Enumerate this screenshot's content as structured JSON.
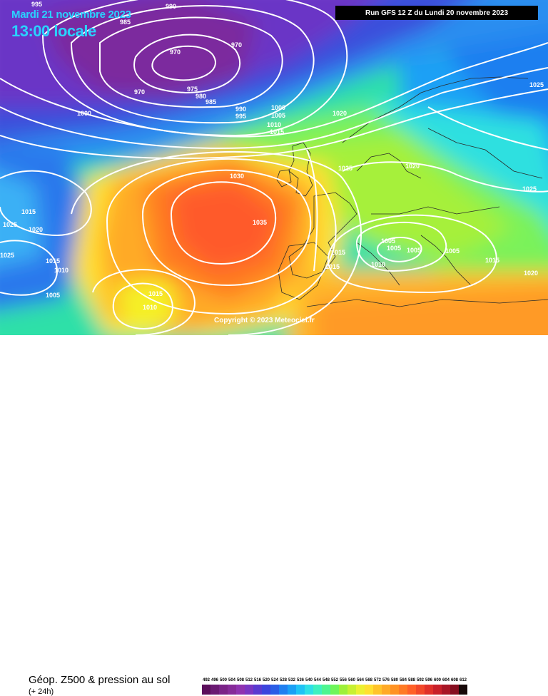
{
  "header": {
    "date": "Mardi 21 novembre 2023",
    "time": "13:00 locale",
    "run": "Run GFS 12 Z du Lundi 20 novembre 2023"
  },
  "copyright": "Copyright © 2023 Meteociel.fr",
  "legend": {
    "title": "Géop. Z500 & pression au sol",
    "subtitle": "(+ 24h)",
    "scale": [
      {
        "label": "492",
        "color": "#5c0f5c"
      },
      {
        "label": "496",
        "color": "#6b1a73"
      },
      {
        "label": "500",
        "color": "#7a2387"
      },
      {
        "label": "504",
        "color": "#862b99"
      },
      {
        "label": "508",
        "color": "#8f33b0"
      },
      {
        "label": "512",
        "color": "#7a36c2"
      },
      {
        "label": "516",
        "color": "#5a3ad0"
      },
      {
        "label": "520",
        "color": "#3c44dd"
      },
      {
        "label": "524",
        "color": "#2a5de6"
      },
      {
        "label": "528",
        "color": "#1f7ff0"
      },
      {
        "label": "532",
        "color": "#1aa0f5"
      },
      {
        "label": "536",
        "color": "#1fc3f5"
      },
      {
        "label": "540",
        "color": "#2ee0e6"
      },
      {
        "label": "544",
        "color": "#3ef0c0"
      },
      {
        "label": "548",
        "color": "#4df590"
      },
      {
        "label": "552",
        "color": "#6ef55a"
      },
      {
        "label": "556",
        "color": "#9ef03a"
      },
      {
        "label": "560",
        "color": "#c8f032"
      },
      {
        "label": "564",
        "color": "#ecf032"
      },
      {
        "label": "568",
        "color": "#ffe030"
      },
      {
        "label": "572",
        "color": "#ffc42a"
      },
      {
        "label": "576",
        "color": "#ffaa26"
      },
      {
        "label": "580",
        "color": "#ff9222"
      },
      {
        "label": "584",
        "color": "#ff7a24"
      },
      {
        "label": "588",
        "color": "#ff6028"
      },
      {
        "label": "592",
        "color": "#f2482a"
      },
      {
        "label": "596",
        "color": "#e0302a"
      },
      {
        "label": "600",
        "color": "#c8202a"
      },
      {
        "label": "604",
        "color": "#a81626"
      },
      {
        "label": "608",
        "color": "#860e20"
      },
      {
        "label": "612",
        "color": "#160808"
      }
    ]
  },
  "isobars": [
    "990",
    "985",
    "995",
    "970",
    "970",
    "970",
    "975",
    "980",
    "985",
    "990",
    "995",
    "1000",
    "1000",
    "1005",
    "1010",
    "1015",
    "1020",
    "1025",
    "1025",
    "1020",
    "1025",
    "1030",
    "1035",
    "1025",
    "1020",
    "1025",
    "1015",
    "1010",
    "1005",
    "1015",
    "1015",
    "1005",
    "1005",
    "1010",
    "1005",
    "1015",
    "1015",
    "1020",
    "1005",
    "1015",
    "1010"
  ]
}
